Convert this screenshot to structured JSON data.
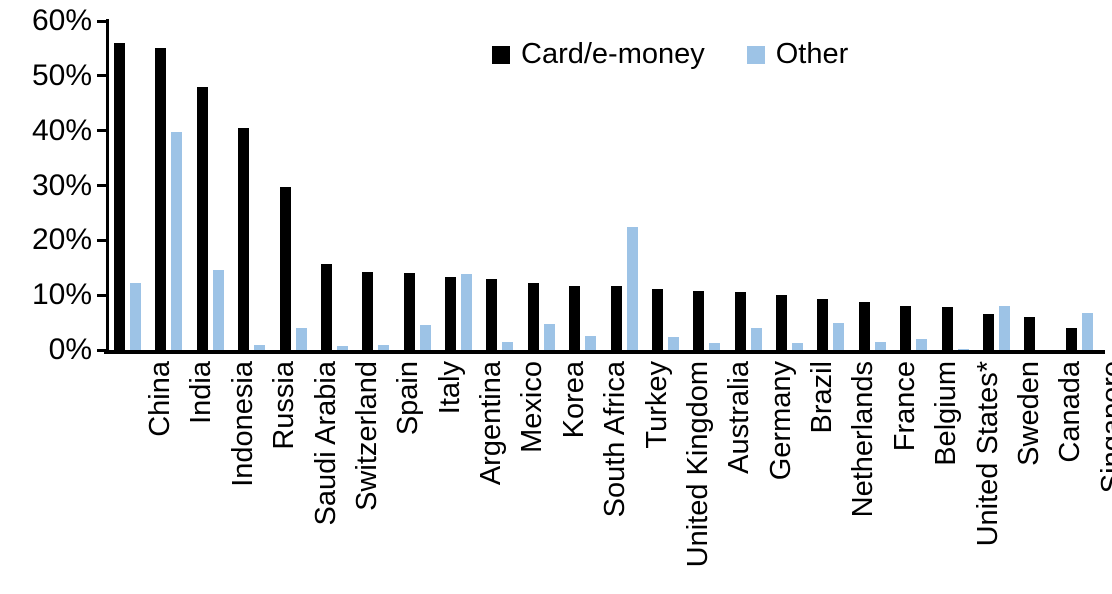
{
  "chart_data": {
    "type": "bar",
    "title": "",
    "xlabel": "",
    "ylabel": "",
    "grid": false,
    "legend_position": "top-center",
    "ylim": [
      0,
      60
    ],
    "y_ticks": [
      "0%",
      "10%",
      "20%",
      "30%",
      "40%",
      "50%",
      "60%"
    ],
    "categories": [
      "China",
      "India",
      "Indonesia",
      "Russia",
      "Saudi Arabia",
      "Switzerland",
      "Spain",
      "Italy",
      "Argentina",
      "Mexico",
      "Korea",
      "South Africa",
      "Turkey",
      "United Kingdom",
      "Australia",
      "Germany",
      "Brazil",
      "Netherlands",
      "France",
      "Belgium",
      "United States*",
      "Sweden",
      "Canada",
      "Singapore"
    ],
    "series": [
      {
        "name": "Card/e-money",
        "color": "#000000",
        "values": [
          56,
          55,
          48,
          40.5,
          29.8,
          15.6,
          14.2,
          14,
          13.4,
          13,
          12.2,
          11.7,
          11.6,
          11.1,
          10.8,
          10.6,
          10,
          9.3,
          8.7,
          8.1,
          7.8,
          6.6,
          6,
          4
        ]
      },
      {
        "name": "Other",
        "color": "#9DC3E6",
        "values": [
          12.3,
          39.7,
          14.5,
          1,
          4,
          0.8,
          1,
          4.6,
          13.9,
          1.4,
          4.7,
          2.5,
          22.5,
          2.4,
          1.2,
          4,
          1.2,
          4.9,
          1.5,
          2,
          0.2,
          8,
          0,
          6.7
        ]
      }
    ]
  }
}
